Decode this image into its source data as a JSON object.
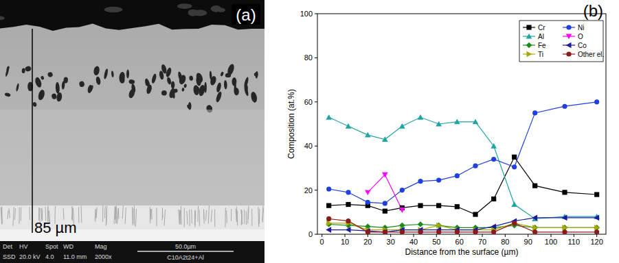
{
  "chart_data": {
    "type": "line",
    "panel_label": "(b)",
    "x_label": "Distance from the surface (µm)",
    "y_label": "Composition (at.%)",
    "x": [
      3,
      11.5,
      20,
      27.5,
      35,
      43,
      51,
      59,
      67,
      75,
      84,
      93,
      106,
      120
    ],
    "xlim": [
      -2,
      124
    ],
    "xticks": [
      0,
      10,
      20,
      30,
      40,
      50,
      60,
      70,
      80,
      90,
      100,
      110,
      120
    ],
    "ylim": [
      0,
      100
    ],
    "yticks": [
      0,
      20,
      40,
      60,
      80,
      100
    ],
    "grid": false,
    "legend": "upper right",
    "series": [
      {
        "name": "Cr",
        "color": "#000000",
        "marker": "square",
        "values": [
          13,
          13.5,
          13,
          10.5,
          12,
          13,
          13,
          12.5,
          9,
          16,
          35,
          22,
          19,
          18
        ]
      },
      {
        "name": "Al",
        "color": "#1fa3a3",
        "marker": "triangle-up",
        "values": [
          53,
          49,
          45,
          43,
          49,
          53,
          50,
          51,
          51,
          40,
          13.5,
          7,
          8,
          8
        ]
      },
      {
        "name": "Fe",
        "color": "#1a8a1a",
        "marker": "diamond",
        "values": [
          4.5,
          4,
          3.5,
          3,
          4,
          4.5,
          4,
          3,
          3,
          3,
          4,
          3,
          3,
          3
        ]
      },
      {
        "name": "Ti",
        "color": "#a8a800",
        "marker": "triangle-right",
        "values": [
          5,
          5,
          2,
          2,
          2,
          2,
          4,
          2,
          2,
          2,
          5,
          3,
          3,
          3
        ]
      },
      {
        "name": "Ni",
        "color": "#1f3fe0",
        "marker": "circle",
        "values": [
          20.5,
          19,
          14.5,
          14,
          20,
          24,
          24.5,
          26.5,
          31,
          34,
          30.5,
          55,
          58,
          60
        ]
      },
      {
        "name": "O",
        "color": "#ff00ff",
        "marker": "triangle-down",
        "values": [
          null,
          null,
          19,
          27,
          11,
          null,
          null,
          null,
          null,
          null,
          null,
          null,
          null,
          null
        ]
      },
      {
        "name": "Co",
        "color": "#1a1aa0",
        "marker": "triangle-left",
        "values": [
          2,
          2,
          1.5,
          1,
          2,
          2,
          2,
          2,
          2,
          3.5,
          6,
          7.5,
          7.5,
          7.5
        ]
      },
      {
        "name": "Other el.",
        "color": "#8b1a1a",
        "marker": "circle",
        "values": [
          7,
          6,
          1,
          1,
          1,
          1,
          1,
          1,
          1,
          1,
          5,
          1,
          1,
          1
        ]
      }
    ]
  },
  "micrograph": {
    "label": "(a)",
    "thickness_label": "85 µm",
    "info_headers": [
      "Det",
      "HV",
      "Spot",
      "WD",
      "Mag"
    ],
    "info_values": [
      "SSD",
      "20.0 kV",
      "4.0",
      "11.0 mm",
      "2000x"
    ],
    "scale_bar": "50.0µm",
    "sample": "C10A2t24+Al"
  }
}
